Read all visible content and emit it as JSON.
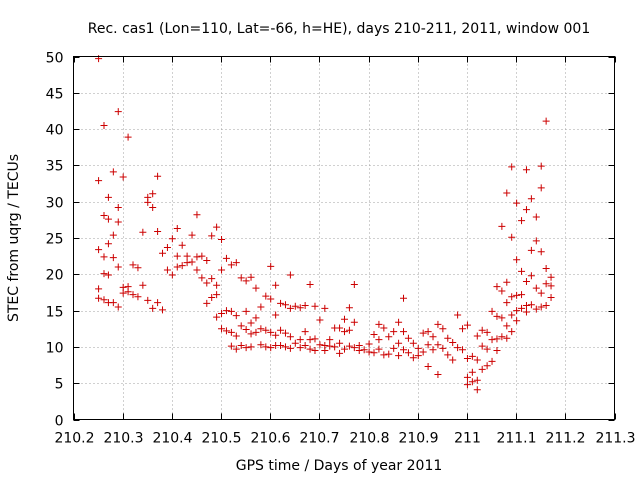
{
  "chart_data": {
    "type": "scatter",
    "title": "Rec. cas1 (Lon=110, Lat=-66, h=HE), days 210-211, 2011, window 001",
    "xlabel": "GPS time / Days of year 2011",
    "ylabel": "STEC from uqrg / TECUs",
    "xlim": [
      210.2,
      211.3
    ],
    "ylim": [
      0,
      50
    ],
    "grid": true,
    "marker": "+",
    "color": "#cc0000",
    "x_ticks": [
      210.2,
      210.3,
      210.4,
      210.5,
      210.6,
      210.7,
      210.8,
      210.9,
      211.0,
      211.1,
      211.2,
      211.3
    ],
    "x_tick_labels": [
      "210.2",
      "210.3",
      "210.4",
      "210.5",
      "210.6",
      "210.7",
      "210.8",
      "210.9",
      "211",
      "211.1",
      "211.2",
      "211.3"
    ],
    "y_ticks": [
      0,
      5,
      10,
      15,
      20,
      25,
      30,
      35,
      40,
      45,
      50
    ],
    "y_tick_labels": [
      "0",
      "5",
      "10",
      "15",
      "20",
      "25",
      "30",
      "35",
      "40",
      "45",
      "50"
    ],
    "series": [
      {
        "name": "STEC",
        "points": [
          [
            210.251,
            49.7
          ],
          [
            210.251,
            32.9
          ],
          [
            210.251,
            23.4
          ],
          [
            210.251,
            18.0
          ],
          [
            210.251,
            16.7
          ],
          [
            210.262,
            40.5
          ],
          [
            210.262,
            28.1
          ],
          [
            210.262,
            22.4
          ],
          [
            210.262,
            20.1
          ],
          [
            210.262,
            16.5
          ],
          [
            210.271,
            30.6
          ],
          [
            210.271,
            27.6
          ],
          [
            210.271,
            24.2
          ],
          [
            210.271,
            19.9
          ],
          [
            210.271,
            16.1
          ],
          [
            210.281,
            34.1
          ],
          [
            210.281,
            25.4
          ],
          [
            210.281,
            22.3
          ],
          [
            210.281,
            16.1
          ],
          [
            210.291,
            42.4
          ],
          [
            210.291,
            29.2
          ],
          [
            210.291,
            27.2
          ],
          [
            210.291,
            21.0
          ],
          [
            210.291,
            15.5
          ],
          [
            210.301,
            33.4
          ],
          [
            210.301,
            18.2
          ],
          [
            210.301,
            17.4
          ],
          [
            210.311,
            38.9
          ],
          [
            210.311,
            18.3
          ],
          [
            210.311,
            17.6
          ],
          [
            210.321,
            21.3
          ],
          [
            210.321,
            17.2
          ],
          [
            210.331,
            20.9
          ],
          [
            210.331,
            16.9
          ],
          [
            210.341,
            25.8
          ],
          [
            210.341,
            18.5
          ],
          [
            210.351,
            30.6
          ],
          [
            210.351,
            29.9
          ],
          [
            210.351,
            16.4
          ],
          [
            210.361,
            31.1
          ],
          [
            210.361,
            29.2
          ],
          [
            210.361,
            15.3
          ],
          [
            210.371,
            33.5
          ],
          [
            210.371,
            25.9
          ],
          [
            210.371,
            16.1
          ],
          [
            210.381,
            22.9
          ],
          [
            210.381,
            15.1
          ],
          [
            210.391,
            23.7
          ],
          [
            210.391,
            20.6
          ],
          [
            210.401,
            24.9
          ],
          [
            210.401,
            19.9
          ],
          [
            210.411,
            26.3
          ],
          [
            210.411,
            22.5
          ],
          [
            210.411,
            21.0
          ],
          [
            210.421,
            24.0
          ],
          [
            210.421,
            21.2
          ],
          [
            210.431,
            22.5
          ],
          [
            210.431,
            21.6
          ],
          [
            210.441,
            25.4
          ],
          [
            210.441,
            21.7
          ],
          [
            210.451,
            28.2
          ],
          [
            210.451,
            22.4
          ],
          [
            210.451,
            20.6
          ],
          [
            210.461,
            22.5
          ],
          [
            210.461,
            19.5
          ],
          [
            210.471,
            21.9
          ],
          [
            210.471,
            18.8
          ],
          [
            210.471,
            16.0
          ],
          [
            210.481,
            25.3
          ],
          [
            210.481,
            19.4
          ],
          [
            210.481,
            16.8
          ],
          [
            210.491,
            26.5
          ],
          [
            210.491,
            18.5
          ],
          [
            210.491,
            17.2
          ],
          [
            210.491,
            14.1
          ],
          [
            210.501,
            24.8
          ],
          [
            210.501,
            20.6
          ],
          [
            210.501,
            14.6
          ],
          [
            210.501,
            12.5
          ],
          [
            210.511,
            22.2
          ],
          [
            210.511,
            15.0
          ],
          [
            210.511,
            12.2
          ],
          [
            210.521,
            21.3
          ],
          [
            210.521,
            14.9
          ],
          [
            210.521,
            12.0
          ],
          [
            210.521,
            10.1
          ],
          [
            210.531,
            21.6
          ],
          [
            210.531,
            14.3
          ],
          [
            210.531,
            11.5
          ],
          [
            210.531,
            9.7
          ],
          [
            210.541,
            19.5
          ],
          [
            210.541,
            12.9
          ],
          [
            210.541,
            10.2
          ],
          [
            210.551,
            19.1
          ],
          [
            210.551,
            14.9
          ],
          [
            210.551,
            12.4
          ],
          [
            210.551,
            9.9
          ],
          [
            210.561,
            19.6
          ],
          [
            210.561,
            13.3
          ],
          [
            210.561,
            11.8
          ],
          [
            210.561,
            10.0
          ],
          [
            210.571,
            18.1
          ],
          [
            210.571,
            14.0
          ],
          [
            210.571,
            12.0
          ],
          [
            210.581,
            15.5
          ],
          [
            210.581,
            12.5
          ],
          [
            210.581,
            10.3
          ],
          [
            210.591,
            17.0
          ],
          [
            210.591,
            12.3
          ],
          [
            210.591,
            10.0
          ],
          [
            210.601,
            21.1
          ],
          [
            210.601,
            16.6
          ],
          [
            210.601,
            12.0
          ],
          [
            210.601,
            9.9
          ],
          [
            210.611,
            18.5
          ],
          [
            210.611,
            14.4
          ],
          [
            210.611,
            11.6
          ],
          [
            210.611,
            10.2
          ],
          [
            210.621,
            16.0
          ],
          [
            210.621,
            12.3
          ],
          [
            210.621,
            10.2
          ],
          [
            210.631,
            15.8
          ],
          [
            210.631,
            11.9
          ],
          [
            210.631,
            10.0
          ],
          [
            210.641,
            19.9
          ],
          [
            210.641,
            15.3
          ],
          [
            210.641,
            11.4
          ],
          [
            210.641,
            9.8
          ],
          [
            210.651,
            15.6
          ],
          [
            210.651,
            10.5
          ],
          [
            210.661,
            15.4
          ],
          [
            210.661,
            11.0
          ],
          [
            210.661,
            9.9
          ],
          [
            210.671,
            15.7
          ],
          [
            210.671,
            12.1
          ],
          [
            210.671,
            10.2
          ],
          [
            210.681,
            18.6
          ],
          [
            210.681,
            11.0
          ],
          [
            210.681,
            9.7
          ],
          [
            210.691,
            15.6
          ],
          [
            210.691,
            11.1
          ],
          [
            210.691,
            9.5
          ],
          [
            210.701,
            13.7
          ],
          [
            210.701,
            10.3
          ],
          [
            210.711,
            15.3
          ],
          [
            210.711,
            10.2
          ],
          [
            210.711,
            9.5
          ],
          [
            210.721,
            11.0
          ],
          [
            210.721,
            10.1
          ],
          [
            210.731,
            12.6
          ],
          [
            210.731,
            10.0
          ],
          [
            210.741,
            12.6
          ],
          [
            210.741,
            10.5
          ],
          [
            210.741,
            9.1
          ],
          [
            210.751,
            13.8
          ],
          [
            210.751,
            12.1
          ],
          [
            210.751,
            9.7
          ],
          [
            210.761,
            15.4
          ],
          [
            210.761,
            12.3
          ],
          [
            210.761,
            10.1
          ],
          [
            210.771,
            18.6
          ],
          [
            210.771,
            13.4
          ],
          [
            210.771,
            9.9
          ],
          [
            210.781,
            10.2
          ],
          [
            210.781,
            9.5
          ],
          [
            210.791,
            9.6
          ],
          [
            210.801,
            10.4
          ],
          [
            210.801,
            9.3
          ],
          [
            210.811,
            11.7
          ],
          [
            210.811,
            9.2
          ],
          [
            210.821,
            13.1
          ],
          [
            210.821,
            11.0
          ],
          [
            210.821,
            9.7
          ],
          [
            210.831,
            12.6
          ],
          [
            210.831,
            8.9
          ],
          [
            210.841,
            11.4
          ],
          [
            210.841,
            9.0
          ],
          [
            210.851,
            12.1
          ],
          [
            210.851,
            9.8
          ],
          [
            210.861,
            13.4
          ],
          [
            210.861,
            10.5
          ],
          [
            210.861,
            8.8
          ],
          [
            210.871,
            16.7
          ],
          [
            210.871,
            12.1
          ],
          [
            210.871,
            9.6
          ],
          [
            210.881,
            11.2
          ],
          [
            210.881,
            9.2
          ],
          [
            210.891,
            10.5
          ],
          [
            210.891,
            8.5
          ],
          [
            210.901,
            9.8
          ],
          [
            210.901,
            8.8
          ],
          [
            210.911,
            11.9
          ],
          [
            210.911,
            9.3
          ],
          [
            210.921,
            12.1
          ],
          [
            210.921,
            10.3
          ],
          [
            210.921,
            7.3
          ],
          [
            210.931,
            11.4
          ],
          [
            210.931,
            9.6
          ],
          [
            210.941,
            13.1
          ],
          [
            210.941,
            10.3
          ],
          [
            210.941,
            6.2
          ],
          [
            210.951,
            12.5
          ],
          [
            210.951,
            9.8
          ],
          [
            210.961,
            11.2
          ],
          [
            210.961,
            8.9
          ],
          [
            210.971,
            10.6
          ],
          [
            210.971,
            8.2
          ],
          [
            210.981,
            14.4
          ],
          [
            210.981,
            9.9
          ],
          [
            210.991,
            12.5
          ],
          [
            210.991,
            9.6
          ],
          [
            211.001,
            13.0
          ],
          [
            211.001,
            8.4
          ],
          [
            211.001,
            5.8
          ],
          [
            211.001,
            4.8
          ],
          [
            211.011,
            8.7
          ],
          [
            211.011,
            6.5
          ],
          [
            211.011,
            5.2
          ],
          [
            211.021,
            11.5
          ],
          [
            211.021,
            8.2
          ],
          [
            211.021,
            5.4
          ],
          [
            211.021,
            4.1
          ],
          [
            211.031,
            12.3
          ],
          [
            211.031,
            10.1
          ],
          [
            211.031,
            6.9
          ],
          [
            211.041,
            12.0
          ],
          [
            211.041,
            9.7
          ],
          [
            211.041,
            7.4
          ],
          [
            211.051,
            14.9
          ],
          [
            211.051,
            11.0
          ],
          [
            211.051,
            8.0
          ],
          [
            211.061,
            18.3
          ],
          [
            211.061,
            14.2
          ],
          [
            211.061,
            11.1
          ],
          [
            211.061,
            9.5
          ],
          [
            211.071,
            26.6
          ],
          [
            211.071,
            17.7
          ],
          [
            211.071,
            14.0
          ],
          [
            211.071,
            11.4
          ],
          [
            211.081,
            31.2
          ],
          [
            211.081,
            18.9
          ],
          [
            211.081,
            16.1
          ],
          [
            211.081,
            12.9
          ],
          [
            211.081,
            11.2
          ],
          [
            211.091,
            34.8
          ],
          [
            211.091,
            25.1
          ],
          [
            211.091,
            16.9
          ],
          [
            211.091,
            14.4
          ],
          [
            211.091,
            12.1
          ],
          [
            211.101,
            29.8
          ],
          [
            211.101,
            22.0
          ],
          [
            211.101,
            17.1
          ],
          [
            211.101,
            15.0
          ],
          [
            211.101,
            13.6
          ],
          [
            211.111,
            27.4
          ],
          [
            211.111,
            20.4
          ],
          [
            211.111,
            17.2
          ],
          [
            211.111,
            15.3
          ],
          [
            211.121,
            34.4
          ],
          [
            211.121,
            28.9
          ],
          [
            211.121,
            19.0
          ],
          [
            211.121,
            15.7
          ],
          [
            211.121,
            14.8
          ],
          [
            211.131,
            30.4
          ],
          [
            211.131,
            23.3
          ],
          [
            211.131,
            19.8
          ],
          [
            211.131,
            15.8
          ],
          [
            211.141,
            27.9
          ],
          [
            211.141,
            24.6
          ],
          [
            211.141,
            18.1
          ],
          [
            211.141,
            15.2
          ],
          [
            211.151,
            34.9
          ],
          [
            211.151,
            31.9
          ],
          [
            211.151,
            23.1
          ],
          [
            211.151,
            17.4
          ],
          [
            211.151,
            15.5
          ],
          [
            211.161,
            41.1
          ],
          [
            211.161,
            20.8
          ],
          [
            211.161,
            18.7
          ],
          [
            211.161,
            15.7
          ],
          [
            211.171,
            19.6
          ],
          [
            211.171,
            18.4
          ],
          [
            211.171,
            16.8
          ]
        ]
      }
    ]
  }
}
